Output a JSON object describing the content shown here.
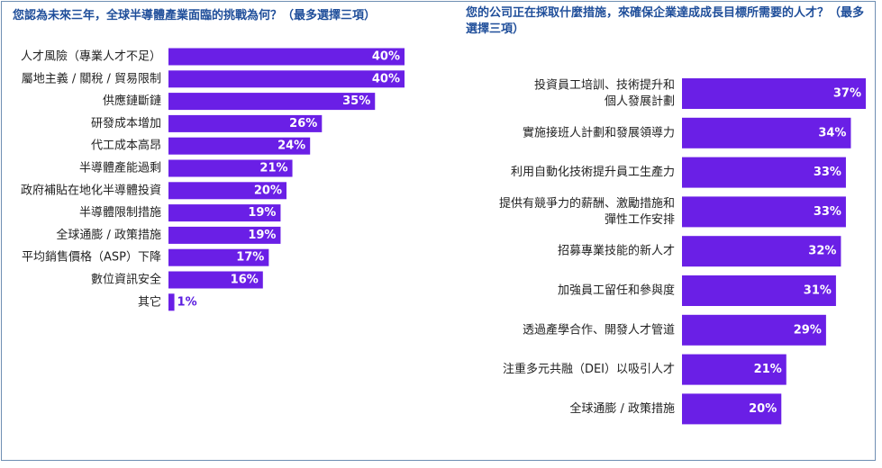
{
  "colors": {
    "bar": "#6a1fe6",
    "title": "#1f4e9a",
    "label": "#222222",
    "border": "#6f8fb3"
  },
  "chart_data": [
    {
      "type": "bar",
      "orientation": "horizontal",
      "title": "您認為未來三年，全球半導體產業面臨的挑戰為何？（最多選擇三項）",
      "categories": [
        "人才風險（專業人才不足）",
        "屬地主義 / 關稅 / 貿易限制",
        "供應鏈斷鏈",
        "研發成本增加",
        "代工成本高昂",
        "半導體產能過剩",
        "政府補貼在地化半導體投資",
        "半導體限制措施",
        "全球通膨 / 政策措施",
        "平均銷售價格（ASP）下降",
        "數位資訊安全",
        "其它"
      ],
      "values": [
        40,
        40,
        35,
        26,
        24,
        21,
        20,
        19,
        19,
        17,
        16,
        1
      ],
      "value_labels": [
        "40%",
        "40%",
        "35%",
        "26%",
        "24%",
        "21%",
        "20%",
        "19%",
        "19%",
        "17%",
        "16%",
        "1%"
      ],
      "unit": "%"
    },
    {
      "type": "bar",
      "orientation": "horizontal",
      "title": "您的公司正在採取什麼措施，來確保企業達成成長目標所需要的人才？（最多選擇三項）",
      "categories": [
        [
          "投資員工培訓、技術提升和",
          "個人發展計劃"
        ],
        [
          "實施接班人計劃和發展領導力"
        ],
        [
          "利用自動化技術提升員工生產力"
        ],
        [
          "提供有競爭力的薪酬、激勵措施和",
          "彈性工作安排"
        ],
        [
          "招募專業技能的新人才"
        ],
        [
          "加強員工留任和參與度"
        ],
        [
          "透過產學合作、開發人才管道"
        ],
        [
          "注重多元共融（DEI）以吸引人才"
        ],
        [
          "全球通膨 / 政策措施"
        ]
      ],
      "values": [
        37,
        34,
        33,
        33,
        32,
        31,
        29,
        21,
        20
      ],
      "value_labels": [
        "37%",
        "34%",
        "33%",
        "33%",
        "32%",
        "31%",
        "29%",
        "21%",
        "20%"
      ],
      "unit": "%"
    }
  ]
}
